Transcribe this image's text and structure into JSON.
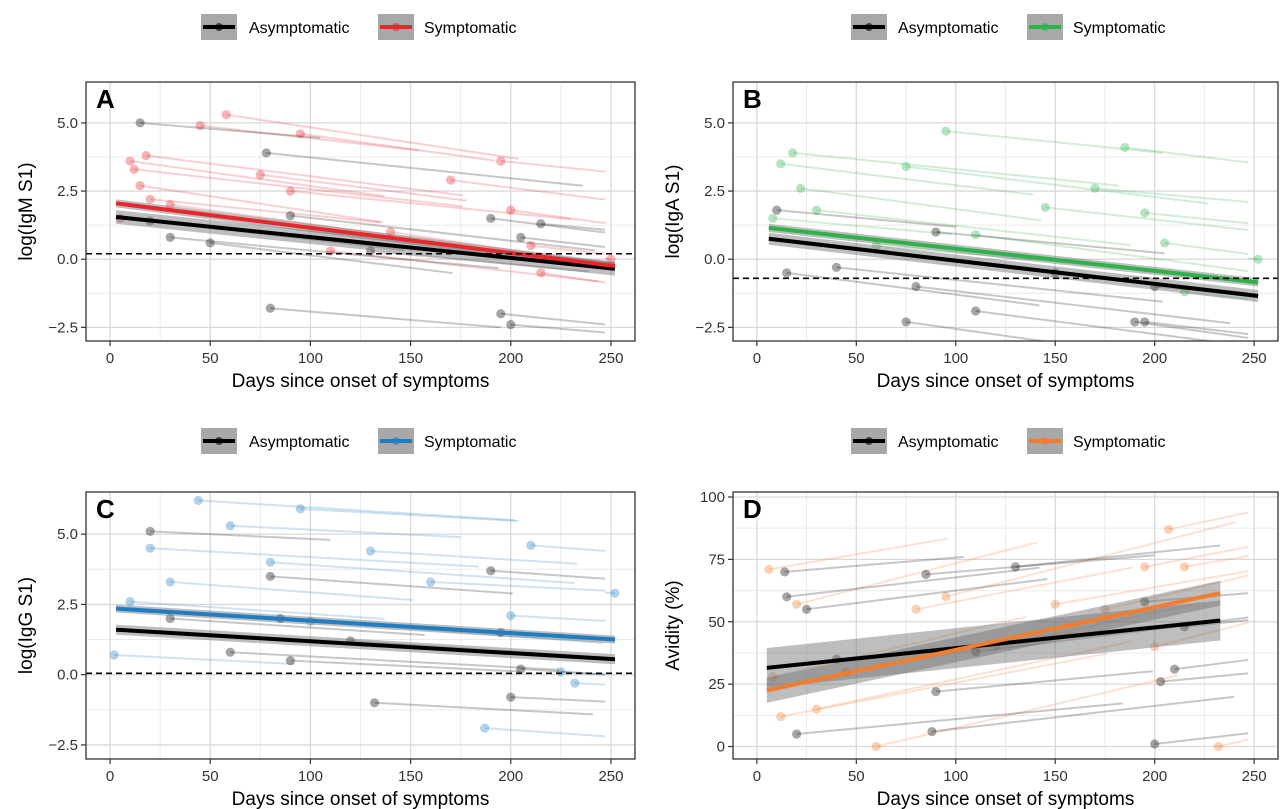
{
  "chart_data": [
    {
      "type": "line",
      "panel_label": "A",
      "xlabel": "Days since onset of symptoms",
      "ylabel": "log(IgM S1)",
      "xlim": [
        -12,
        262
      ],
      "ylim": [
        -3.0,
        6.5
      ],
      "x_ticks": [
        0,
        50,
        100,
        150,
        200,
        250
      ],
      "y_ticks": [
        -2.5,
        0.0,
        2.5,
        5.0
      ],
      "y_tick_labels": [
        "−2.5",
        "0.0",
        "2.5",
        "5.0"
      ],
      "threshold": 0.2,
      "legend_position": "top",
      "legend": [
        {
          "name": "Asymptomatic",
          "color": "#000000"
        },
        {
          "name": "Symptomatic",
          "color": "#E8262C"
        }
      ],
      "series": [
        {
          "name": "Asymptomatic",
          "color": "#000000",
          "fit": {
            "x": [
              3,
              252
            ],
            "y": [
              1.55,
              -0.35
            ]
          },
          "band": 0.25
        },
        {
          "name": "Symptomatic",
          "color": "#E8262C",
          "fit": {
            "x": [
              3,
              252
            ],
            "y": [
              2.05,
              -0.25
            ]
          },
          "band": 0.15
        }
      ],
      "sample_points": {
        "Symptomatic": [
          [
            5,
            1.5
          ],
          [
            10,
            3.6
          ],
          [
            12,
            3.3
          ],
          [
            15,
            2.7
          ],
          [
            18,
            3.8
          ],
          [
            20,
            2.2
          ],
          [
            30,
            2.0
          ],
          [
            45,
            4.9
          ],
          [
            58,
            5.3
          ],
          [
            75,
            3.1
          ],
          [
            90,
            2.5
          ],
          [
            95,
            4.6
          ],
          [
            110,
            0.3
          ],
          [
            140,
            1.0
          ],
          [
            170,
            2.9
          ],
          [
            195,
            3.6
          ],
          [
            200,
            1.8
          ],
          [
            210,
            0.5
          ],
          [
            215,
            -0.5
          ],
          [
            250,
            0.0
          ]
        ],
        "Asymptomatic": [
          [
            15,
            5.0
          ],
          [
            20,
            1.4
          ],
          [
            30,
            0.8
          ],
          [
            50,
            0.6
          ],
          [
            78,
            3.9
          ],
          [
            80,
            -1.8
          ],
          [
            90,
            1.6
          ],
          [
            130,
            0.3
          ],
          [
            190,
            1.5
          ],
          [
            195,
            -2.0
          ],
          [
            200,
            -2.4
          ],
          [
            205,
            0.8
          ],
          [
            215,
            1.3
          ]
        ]
      }
    },
    {
      "type": "line",
      "panel_label": "B",
      "xlabel": "Days since onset of symptoms",
      "ylabel": "log(IgA S1)",
      "xlim": [
        -12,
        262
      ],
      "ylim": [
        -3.0,
        6.5
      ],
      "x_ticks": [
        0,
        50,
        100,
        150,
        200,
        250
      ],
      "y_ticks": [
        -2.5,
        0.0,
        2.5,
        5.0
      ],
      "y_tick_labels": [
        "−2.5",
        "0.0",
        "2.5",
        "5.0"
      ],
      "threshold": -0.7,
      "legend_position": "top",
      "legend": [
        {
          "name": "Asymptomatic",
          "color": "#000000"
        },
        {
          "name": "Symptomatic",
          "color": "#2DB34A"
        }
      ],
      "series": [
        {
          "name": "Asymptomatic",
          "color": "#000000",
          "fit": {
            "x": [
              6,
              252
            ],
            "y": [
              0.75,
              -1.35
            ]
          },
          "band": 0.22
        },
        {
          "name": "Symptomatic",
          "color": "#2DB34A",
          "fit": {
            "x": [
              6,
              252
            ],
            "y": [
              1.15,
              -0.85
            ]
          },
          "band": 0.15
        }
      ],
      "sample_points": {
        "Symptomatic": [
          [
            8,
            1.5
          ],
          [
            12,
            3.5
          ],
          [
            18,
            3.9
          ],
          [
            22,
            2.6
          ],
          [
            30,
            1.8
          ],
          [
            60,
            0.5
          ],
          [
            75,
            3.4
          ],
          [
            95,
            4.7
          ],
          [
            110,
            0.9
          ],
          [
            145,
            1.9
          ],
          [
            170,
            2.6
          ],
          [
            185,
            4.1
          ],
          [
            195,
            1.7
          ],
          [
            205,
            0.6
          ],
          [
            215,
            -1.2
          ],
          [
            252,
            0.0
          ]
        ],
        "Asymptomatic": [
          [
            10,
            1.8
          ],
          [
            15,
            -0.5
          ],
          [
            40,
            -0.3
          ],
          [
            75,
            -2.3
          ],
          [
            80,
            -1.0
          ],
          [
            90,
            1.0
          ],
          [
            110,
            -1.9
          ],
          [
            150,
            -0.5
          ],
          [
            190,
            -2.3
          ],
          [
            195,
            -2.3
          ],
          [
            200,
            -1.0
          ]
        ]
      }
    },
    {
      "type": "line",
      "panel_label": "C",
      "xlabel": "Days since onset of symptoms",
      "ylabel": "log(IgG S1)",
      "xlim": [
        -12,
        262
      ],
      "ylim": [
        -3.0,
        6.5
      ],
      "x_ticks": [
        0,
        50,
        100,
        150,
        200,
        250
      ],
      "y_ticks": [
        -2.5,
        0.0,
        2.5,
        5.0
      ],
      "y_tick_labels": [
        "−2.5",
        "0.0",
        "2.5",
        "5.0"
      ],
      "threshold": 0.05,
      "legend_position": "top",
      "legend": [
        {
          "name": "Asymptomatic",
          "color": "#000000"
        },
        {
          "name": "Symptomatic",
          "color": "#1F7EC2"
        }
      ],
      "series": [
        {
          "name": "Asymptomatic",
          "color": "#000000",
          "fit": {
            "x": [
              3,
              252
            ],
            "y": [
              1.6,
              0.55
            ]
          },
          "band": 0.18
        },
        {
          "name": "Symptomatic",
          "color": "#1F7EC2",
          "fit": {
            "x": [
              3,
              252
            ],
            "y": [
              2.35,
              1.25
            ]
          },
          "band": 0.14
        }
      ],
      "sample_points": {
        "Symptomatic": [
          [
            2,
            0.7
          ],
          [
            10,
            2.6
          ],
          [
            20,
            4.5
          ],
          [
            30,
            3.3
          ],
          [
            44,
            6.2
          ],
          [
            60,
            5.3
          ],
          [
            80,
            4.0
          ],
          [
            95,
            5.9
          ],
          [
            100,
            1.9
          ],
          [
            130,
            4.4
          ],
          [
            160,
            3.3
          ],
          [
            187,
            -1.9
          ],
          [
            200,
            2.1
          ],
          [
            210,
            4.6
          ],
          [
            225,
            0.1
          ],
          [
            232,
            -0.3
          ],
          [
            252,
            2.9
          ]
        ],
        "Asymptomatic": [
          [
            20,
            5.1
          ],
          [
            30,
            2.0
          ],
          [
            60,
            0.8
          ],
          [
            80,
            3.5
          ],
          [
            85,
            2.0
          ],
          [
            90,
            0.5
          ],
          [
            120,
            1.2
          ],
          [
            132,
            -1.0
          ],
          [
            190,
            3.7
          ],
          [
            195,
            1.5
          ],
          [
            200,
            -0.8
          ],
          [
            205,
            0.2
          ]
        ]
      }
    },
    {
      "type": "line",
      "panel_label": "D",
      "xlabel": "Days since onset of symptoms",
      "ylabel": "Avidity (%)",
      "xlim": [
        -12,
        262
      ],
      "ylim": [
        -5,
        102
      ],
      "x_ticks": [
        0,
        50,
        100,
        150,
        200,
        250
      ],
      "y_ticks": [
        0,
        25,
        50,
        75,
        100
      ],
      "y_tick_labels": [
        "0",
        "25",
        "50",
        "75",
        "100"
      ],
      "legend_position": "top",
      "legend": [
        {
          "name": "Asymptomatic",
          "color": "#000000"
        },
        {
          "name": "Symptomatic",
          "color": "#F47C2E"
        }
      ],
      "series": [
        {
          "name": "Asymptomatic",
          "color": "#000000",
          "fit": {
            "x": [
              5,
              233
            ],
            "y": [
              31.5,
              50.5
            ]
          },
          "band": 8
        },
        {
          "name": "Symptomatic",
          "color": "#F47C2E",
          "fit": {
            "x": [
              5,
              233
            ],
            "y": [
              22.5,
              61.5
            ]
          },
          "band": 5
        }
      ],
      "sample_points": {
        "Symptomatic": [
          [
            6,
            71
          ],
          [
            8,
            28
          ],
          [
            12,
            12
          ],
          [
            20,
            57
          ],
          [
            30,
            15
          ],
          [
            45,
            30
          ],
          [
            60,
            0
          ],
          [
            80,
            55
          ],
          [
            95,
            60
          ],
          [
            120,
            40
          ],
          [
            150,
            57
          ],
          [
            175,
            55
          ],
          [
            195,
            72
          ],
          [
            200,
            40
          ],
          [
            207,
            87
          ],
          [
            215,
            72
          ],
          [
            232,
            0
          ]
        ],
        "Asymptomatic": [
          [
            14,
            70
          ],
          [
            15,
            60
          ],
          [
            20,
            5
          ],
          [
            25,
            55
          ],
          [
            40,
            35
          ],
          [
            85,
            69
          ],
          [
            88,
            6
          ],
          [
            90,
            22
          ],
          [
            110,
            38
          ],
          [
            130,
            72
          ],
          [
            195,
            58
          ],
          [
            200,
            1
          ],
          [
            203,
            26
          ],
          [
            210,
            31
          ],
          [
            215,
            48
          ]
        ]
      }
    }
  ]
}
